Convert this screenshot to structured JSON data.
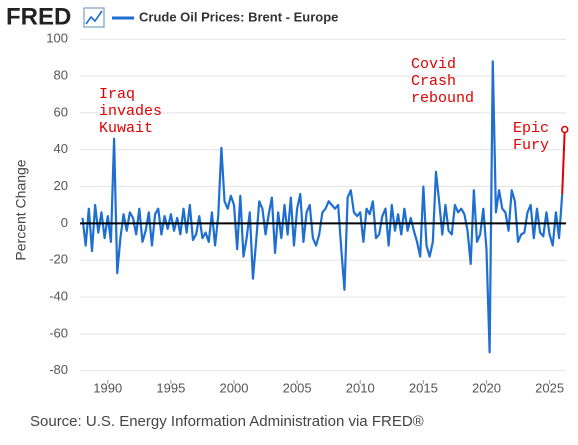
{
  "chart_data": {
    "type": "line",
    "brand": "FRED",
    "ylabel": "Percent Change",
    "source": "Source: U.S. Energy Information Administration via FRED®",
    "series": [
      {
        "name": "Crude Oil Prices: Brent - Europe",
        "color": "#1e6fd0",
        "x": [
          1988,
          1988.25,
          1988.5,
          1988.75,
          1989,
          1989.25,
          1989.5,
          1989.75,
          1990,
          1990.25,
          1990.5,
          1990.75,
          1991,
          1991.25,
          1991.5,
          1991.75,
          1992,
          1992.25,
          1992.5,
          1992.75,
          1993,
          1993.25,
          1993.5,
          1993.75,
          1994,
          1994.25,
          1994.5,
          1994.75,
          1995,
          1995.25,
          1995.5,
          1995.75,
          1996,
          1996.25,
          1996.5,
          1996.75,
          1997,
          1997.25,
          1997.5,
          1997.75,
          1998,
          1998.25,
          1998.5,
          1998.75,
          1999,
          1999.25,
          1999.5,
          1999.75,
          2000,
          2000.25,
          2000.5,
          2000.75,
          2001,
          2001.25,
          2001.5,
          2001.75,
          2002,
          2002.25,
          2002.5,
          2002.75,
          2003,
          2003.25,
          2003.5,
          2003.75,
          2004,
          2004.25,
          2004.5,
          2004.75,
          2005,
          2005.25,
          2005.5,
          2005.75,
          2006,
          2006.25,
          2006.5,
          2006.75,
          2007,
          2007.25,
          2007.5,
          2007.75,
          2008,
          2008.25,
          2008.5,
          2008.75,
          2009,
          2009.25,
          2009.5,
          2009.75,
          2010,
          2010.25,
          2010.5,
          2010.75,
          2011,
          2011.25,
          2011.5,
          2011.75,
          2012,
          2012.25,
          2012.5,
          2012.75,
          2013,
          2013.25,
          2013.5,
          2013.75,
          2014,
          2014.25,
          2014.5,
          2014.75,
          2015,
          2015.25,
          2015.5,
          2015.75,
          2016,
          2016.25,
          2016.5,
          2016.75,
          2017,
          2017.25,
          2017.5,
          2017.75,
          2018,
          2018.25,
          2018.5,
          2018.75,
          2019,
          2019.25,
          2019.5,
          2019.75,
          2020,
          2020.25,
          2020.5,
          2020.75,
          2021,
          2021.25,
          2021.5,
          2021.75,
          2022,
          2022.25,
          2022.5,
          2022.75,
          2023,
          2023.25,
          2023.5,
          2023.75,
          2024,
          2024.25,
          2024.5,
          2024.75,
          2025,
          2025.25,
          2025.5,
          2025.75,
          2026
        ],
        "values": [
          3,
          -12,
          8,
          -15,
          10,
          -5,
          6,
          -8,
          4,
          -10,
          46,
          -27,
          -8,
          5,
          -4,
          6,
          3,
          -6,
          8,
          -10,
          -4,
          6,
          -12,
          5,
          8,
          -6,
          4,
          -3,
          5,
          -4,
          3,
          -6,
          8,
          -5,
          10,
          -9,
          -6,
          4,
          -8,
          -5,
          -10,
          6,
          -12,
          4,
          41,
          12,
          8,
          15,
          10,
          -14,
          15,
          -18,
          -8,
          6,
          -30,
          -10,
          12,
          8,
          -6,
          5,
          14,
          -16,
          6,
          -8,
          10,
          -6,
          14,
          -12,
          8,
          16,
          -10,
          6,
          10,
          -8,
          -12,
          -6,
          6,
          8,
          12,
          10,
          8,
          10,
          -14,
          -36,
          14,
          18,
          6,
          4,
          6,
          -10,
          8,
          5,
          12,
          -8,
          -6,
          4,
          8,
          -12,
          10,
          -4,
          5,
          -6,
          8,
          -4,
          3,
          -4,
          -10,
          -18,
          20,
          -12,
          -18,
          -10,
          28,
          12,
          -6,
          10,
          -4,
          -6,
          10,
          6,
          8,
          5,
          -4,
          -22,
          18,
          -10,
          -6,
          8,
          -14,
          -70,
          88,
          6,
          18,
          8,
          6,
          -4,
          18,
          12,
          -10,
          -6,
          -5,
          6,
          10,
          -8,
          8,
          -5,
          -7,
          6,
          -6,
          -12,
          6,
          -8,
          16
        ]
      }
    ],
    "highlight": {
      "x": 2026.2,
      "value": 51,
      "color": "#e00000"
    },
    "annotations": [
      {
        "lines": [
          "Iraq",
          "invades",
          "Kuwait"
        ]
      },
      {
        "lines": [
          "Covid",
          "Crash",
          "rebound"
        ]
      },
      {
        "lines": [
          "Epic",
          "Fury"
        ]
      }
    ],
    "xlim": [
      1987.8,
      2026.3
    ],
    "xticks": [
      1990,
      1995,
      2000,
      2005,
      2010,
      2015,
      2020,
      2025
    ],
    "ylim": [
      -85,
      105
    ],
    "yticks": [
      -80,
      -60,
      -40,
      -20,
      0,
      20,
      40,
      60,
      80,
      100
    ],
    "grid": true,
    "zero_line": true
  }
}
